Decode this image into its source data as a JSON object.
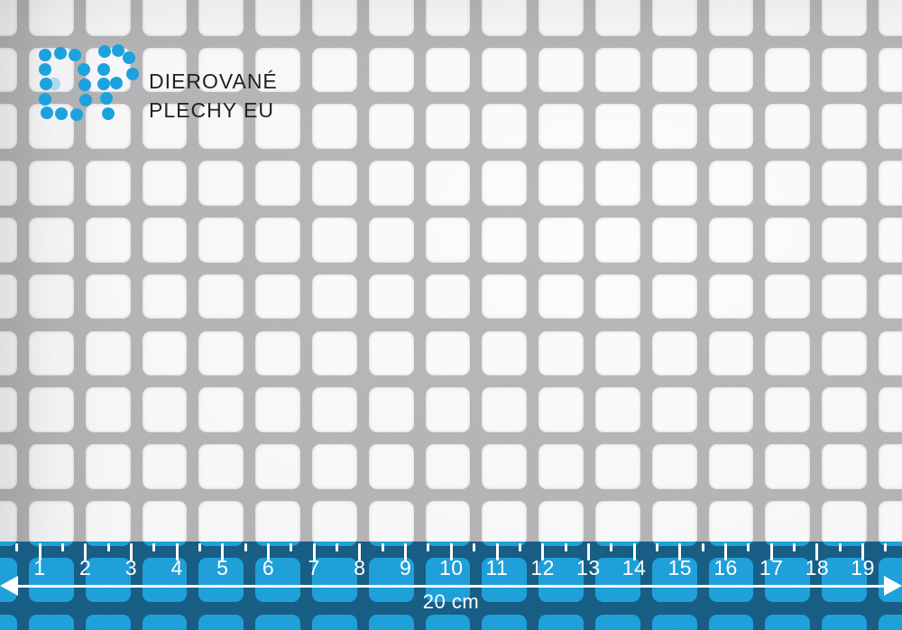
{
  "brand": {
    "monogram": "DP",
    "line1": "DIEROVANÉ",
    "line2": "PLECHY EU",
    "logo_color": "#1b9edd",
    "text_color": "#1e1e1e",
    "dots": {
      "d": [
        [
          50,
          61
        ],
        [
          67,
          59
        ],
        [
          83,
          61
        ],
        [
          50,
          77
        ],
        [
          51,
          93
        ],
        [
          50,
          110
        ],
        [
          93,
          77
        ],
        [
          94,
          94
        ],
        [
          95,
          111
        ],
        [
          52,
          125
        ],
        [
          68,
          126
        ],
        [
          85,
          127
        ]
      ],
      "p": [
        [
          116,
          57
        ],
        [
          131,
          56
        ],
        [
          143,
          64
        ],
        [
          147,
          82
        ],
        [
          115,
          77
        ],
        [
          115,
          93
        ],
        [
          129,
          92
        ],
        [
          118,
          109
        ],
        [
          120,
          126
        ]
      ],
      "ghost": [
        [
          60,
          93
        ]
      ]
    }
  },
  "sheet": {
    "metal_color": "#b2b2b4",
    "hole_color": "#fcfcfd"
  },
  "ruler": {
    "labels": [
      "1",
      "2",
      "3",
      "4",
      "5",
      "6",
      "7",
      "8",
      "9",
      "10",
      "11",
      "12",
      "13",
      "14",
      "15",
      "16",
      "17",
      "18",
      "19"
    ],
    "span_label": "20 cm",
    "bar_color": "#175a80",
    "hole_color": "#1e9cd8",
    "tick_color": "#ffffff",
    "text_color": "#ffffff"
  }
}
